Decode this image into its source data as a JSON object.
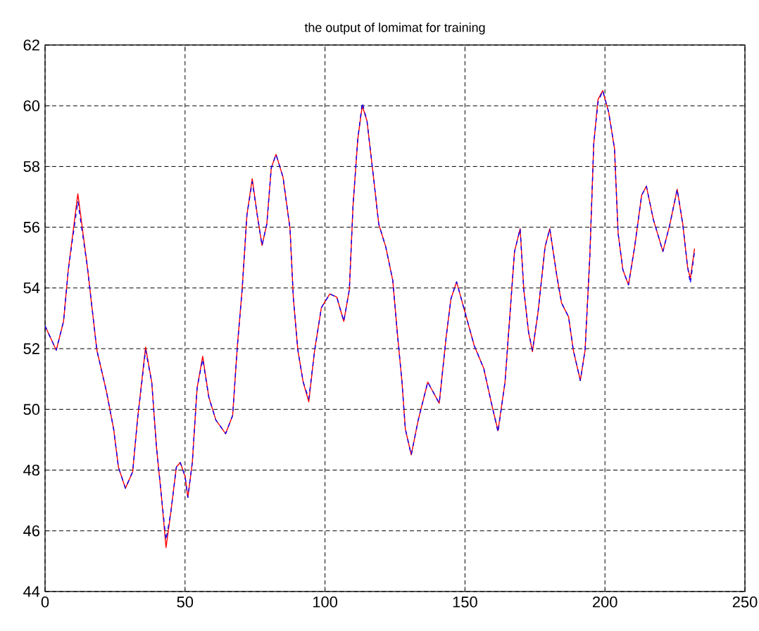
{
  "chart_data": {
    "type": "line",
    "title": "the output of lomimat for training",
    "x": [
      0,
      4,
      6.6,
      8.3,
      11.7,
      15.1,
      18.5,
      21.9,
      24.5,
      26.2,
      28.7,
      31.3,
      33,
      35.9,
      38.1,
      39.8,
      41.5,
      43.2,
      44.9,
      46.9,
      48.3,
      50,
      51,
      52.6,
      54.3,
      56.3,
      58.5,
      61,
      64.5,
      67,
      68.7,
      70.4,
      72.1,
      74,
      75.8,
      77.5,
      79.2,
      80.8,
      82.5,
      85,
      87.5,
      88.7,
      90.3,
      92.2,
      94.2,
      96.3,
      98.7,
      101.7,
      104.2,
      106.7,
      108.7,
      110,
      111.7,
      113.3,
      115,
      117.5,
      119.2,
      121.7,
      124.2,
      125.8,
      127.5,
      128.7,
      130.8,
      133.3,
      136.7,
      140.8,
      143.3,
      145,
      147,
      150,
      153.3,
      156.7,
      159.7,
      161.8,
      164.3,
      166,
      167.7,
      169.7,
      171,
      172.7,
      174.1,
      176.1,
      178.6,
      180.3,
      182.8,
      184.5,
      187,
      188.7,
      191.2,
      192.9,
      194.6,
      196,
      197.5,
      199.2,
      201.3,
      203.4,
      204.7,
      206.4,
      208.4,
      210.6,
      213.1,
      214.8,
      217.3,
      220.7,
      223.2,
      225.8,
      227.8,
      229.5,
      230.5,
      232
    ],
    "series": [
      {
        "color": "#ff0000",
        "values": [
          52.75,
          51.95,
          52.9,
          54.6,
          57.1,
          54.7,
          51.95,
          50.6,
          49.35,
          48.1,
          47.4,
          47.95,
          49.65,
          52.05,
          50.9,
          48.75,
          47.2,
          45.45,
          46.6,
          48.1,
          48.25,
          47.8,
          47.1,
          48.25,
          50.7,
          51.75,
          50.4,
          49.65,
          49.2,
          49.8,
          52.1,
          53.95,
          56.4,
          57.6,
          56.4,
          55.4,
          56.1,
          57.95,
          58.4,
          57.65,
          55.95,
          53.65,
          51.95,
          50.9,
          50.25,
          51.95,
          53.35,
          53.8,
          53.7,
          52.9,
          53.95,
          56.7,
          58.9,
          60.0,
          59.5,
          57.5,
          56.1,
          55.35,
          54.25,
          52.55,
          50.9,
          49.35,
          48.5,
          49.65,
          50.9,
          50.2,
          52.4,
          53.65,
          54.2,
          53.2,
          52.1,
          51.35,
          50.1,
          49.3,
          50.9,
          53.05,
          55.2,
          55.95,
          53.95,
          52.55,
          51.9,
          53.2,
          55.35,
          55.95,
          54.4,
          53.5,
          53.05,
          51.95,
          50.95,
          51.95,
          55.05,
          58.75,
          60.2,
          60.5,
          59.8,
          58.6,
          55.8,
          54.6,
          54.1,
          55.35,
          57.05,
          57.35,
          56.25,
          55.2,
          56.1,
          57.25,
          56.1,
          54.7,
          54.3,
          55.3
        ]
      },
      {
        "color": "#0000ff",
        "line_style": "dashed",
        "values": [
          52.75,
          51.95,
          52.9,
          54.6,
          56.85,
          54.7,
          51.95,
          50.6,
          49.35,
          48.1,
          47.4,
          47.95,
          49.65,
          51.95,
          50.9,
          48.75,
          47.2,
          45.7,
          46.6,
          48.1,
          48.25,
          47.8,
          47.1,
          48.25,
          50.7,
          51.65,
          50.4,
          49.65,
          49.2,
          49.8,
          52.1,
          53.95,
          56.4,
          57.5,
          56.4,
          55.4,
          56.1,
          57.95,
          58.4,
          57.65,
          55.95,
          53.65,
          51.95,
          50.9,
          50.35,
          51.95,
          53.35,
          53.8,
          53.7,
          52.9,
          53.95,
          56.7,
          58.9,
          60.1,
          59.5,
          57.5,
          56.1,
          55.35,
          54.25,
          52.55,
          50.9,
          49.35,
          48.5,
          49.65,
          50.9,
          50.2,
          52.4,
          53.65,
          54.2,
          53.2,
          52.1,
          51.35,
          50.1,
          49.25,
          50.9,
          53.05,
          55.2,
          55.95,
          53.95,
          52.55,
          51.95,
          53.2,
          55.35,
          55.95,
          54.4,
          53.5,
          53.05,
          51.95,
          50.95,
          51.95,
          55.05,
          58.75,
          60.1,
          60.5,
          59.8,
          58.6,
          55.8,
          54.6,
          54.1,
          55.35,
          57.05,
          57.35,
          56.25,
          55.2,
          56.1,
          57.25,
          56.1,
          54.7,
          54.15,
          55.2
        ]
      }
    ],
    "xlim": [
      0,
      250
    ],
    "ylim": [
      44,
      62
    ],
    "xticks": [
      0,
      50,
      100,
      150,
      200,
      250
    ],
    "yticks": [
      44,
      46,
      48,
      50,
      52,
      54,
      56,
      58,
      60,
      62
    ],
    "grid": true
  }
}
